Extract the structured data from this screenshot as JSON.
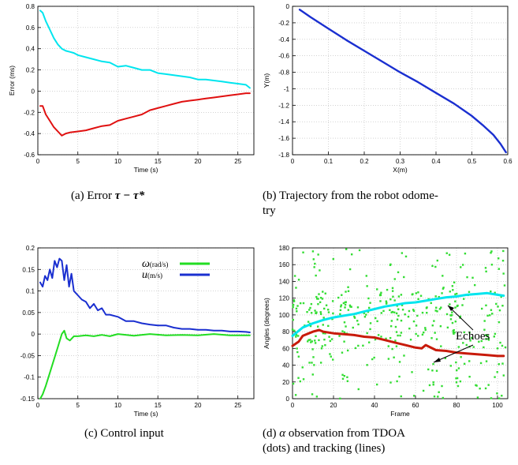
{
  "captions": {
    "a_prefix": "(a) Error ",
    "a_math": "τ − τ*",
    "b_line1": "(b) Trajectory from the robot odome-",
    "b_line2": "try",
    "c": "(c) Control input",
    "d_line1_pre": "(d) ",
    "d_line1_alpha": "α",
    "d_line1_post": " observation from TDOA",
    "d_line2": "(dots) and tracking (lines)"
  },
  "chart_data": [
    {
      "id": "a",
      "type": "line",
      "title": "",
      "xlabel": "Time (s)",
      "ylabel": "Error (ms)",
      "xlim": [
        0,
        27
      ],
      "ylim": [
        -0.6,
        0.8
      ],
      "xticks": [
        0,
        5,
        10,
        15,
        20,
        25
      ],
      "yticks": [
        -0.6,
        -0.4,
        -0.2,
        0,
        0.2,
        0.4,
        0.6,
        0.8
      ],
      "series": [
        {
          "color": "#00e5ee",
          "x": [
            0.3,
            0.6,
            1.0,
            1.5,
            2.0,
            2.5,
            3.0,
            3.5,
            4.0,
            4.5,
            5.0,
            6.0,
            7.0,
            8.0,
            9.0,
            10.0,
            11.0,
            12.0,
            13.0,
            14.0,
            15.0,
            16.0,
            17.0,
            18.0,
            19.0,
            20.0,
            21.0,
            22.0,
            23.0,
            24.0,
            25.0,
            26.0,
            26.5
          ],
          "y": [
            0.76,
            0.74,
            0.66,
            0.58,
            0.5,
            0.44,
            0.4,
            0.38,
            0.37,
            0.36,
            0.34,
            0.32,
            0.3,
            0.28,
            0.27,
            0.23,
            0.24,
            0.22,
            0.2,
            0.2,
            0.17,
            0.16,
            0.15,
            0.14,
            0.13,
            0.11,
            0.11,
            0.1,
            0.09,
            0.08,
            0.07,
            0.06,
            0.03
          ]
        },
        {
          "color": "#e01010",
          "x": [
            0.3,
            0.6,
            1.0,
            1.5,
            2.0,
            2.5,
            3.0,
            3.5,
            4.0,
            5.0,
            6.0,
            7.0,
            8.0,
            9.0,
            10.0,
            11.0,
            12.0,
            13.0,
            14.0,
            15.0,
            16.0,
            17.0,
            18.0,
            19.0,
            20.0,
            21.0,
            22.0,
            23.0,
            24.0,
            25.0,
            26.0,
            26.5
          ],
          "y": [
            -0.14,
            -0.14,
            -0.22,
            -0.28,
            -0.34,
            -0.38,
            -0.42,
            -0.4,
            -0.39,
            -0.38,
            -0.37,
            -0.35,
            -0.33,
            -0.32,
            -0.28,
            -0.26,
            -0.24,
            -0.22,
            -0.18,
            -0.16,
            -0.14,
            -0.12,
            -0.1,
            -0.09,
            -0.08,
            -0.07,
            -0.06,
            -0.05,
            -0.04,
            -0.03,
            -0.02,
            -0.02
          ]
        }
      ]
    },
    {
      "id": "b",
      "type": "line",
      "title": "",
      "xlabel": "X(m)",
      "ylabel": "Y(m)",
      "xlim": [
        0,
        0.6
      ],
      "ylim": [
        -1.8,
        0
      ],
      "xticks": [
        0,
        0.1,
        0.2,
        0.3,
        0.4,
        0.5,
        0.6
      ],
      "yticks": [
        0,
        -0.2,
        -0.4,
        -0.6,
        -0.8,
        -1,
        -1.2,
        -1.4,
        -1.6,
        -1.8
      ],
      "series": [
        {
          "color": "#1a2fd0",
          "x": [
            0.02,
            0.05,
            0.1,
            0.15,
            0.2,
            0.25,
            0.3,
            0.35,
            0.4,
            0.45,
            0.5,
            0.53,
            0.56,
            0.58,
            0.595
          ],
          "y": [
            -0.04,
            -0.13,
            -0.27,
            -0.41,
            -0.54,
            -0.67,
            -0.8,
            -0.92,
            -1.05,
            -1.18,
            -1.33,
            -1.44,
            -1.56,
            -1.67,
            -1.77
          ]
        }
      ]
    },
    {
      "id": "c",
      "type": "line",
      "title": "",
      "xlabel": "Time (s)",
      "ylabel": "",
      "xlim": [
        0,
        27
      ],
      "ylim": [
        -0.15,
        0.2
      ],
      "xticks": [
        0,
        5,
        10,
        15,
        20,
        25
      ],
      "yticks": [
        -0.15,
        -0.1,
        -0.05,
        0,
        0.05,
        0.1,
        0.15,
        0.2
      ],
      "legend_position": "top-right",
      "series": [
        {
          "name": "ω",
          "name_sub": "(rad/s)",
          "color": "#22dd22",
          "x": [
            0.3,
            0.6,
            1.0,
            1.5,
            2.0,
            2.5,
            3.0,
            3.3,
            3.6,
            4.0,
            4.5,
            5.0,
            6.0,
            7.0,
            8.0,
            9.0,
            10.0,
            12.0,
            14.0,
            16.0,
            18.0,
            20.0,
            22.0,
            24.0,
            26.5
          ],
          "y": [
            -0.15,
            -0.14,
            -0.12,
            -0.09,
            -0.06,
            -0.03,
            0.0,
            0.008,
            -0.01,
            -0.015,
            -0.005,
            -0.005,
            -0.003,
            -0.005,
            -0.002,
            -0.005,
            0.0,
            -0.004,
            0.0,
            -0.003,
            -0.002,
            -0.003,
            0.0,
            -0.003,
            -0.003
          ]
        },
        {
          "name": "u",
          "name_sub": "(m/s)",
          "color": "#1a2fd0",
          "x": [
            0.3,
            0.6,
            0.9,
            1.2,
            1.5,
            1.8,
            2.1,
            2.4,
            2.7,
            3.0,
            3.3,
            3.6,
            3.9,
            4.2,
            4.5,
            5.0,
            5.5,
            6.0,
            6.5,
            7.0,
            7.5,
            8.0,
            8.5,
            9.0,
            10.0,
            11.0,
            12.0,
            13.0,
            14.0,
            15.0,
            16.0,
            17.0,
            18.0,
            19.0,
            20.0,
            21.0,
            22.0,
            23.0,
            24.0,
            25.0,
            26.0,
            26.5
          ],
          "y": [
            0.12,
            0.11,
            0.135,
            0.125,
            0.15,
            0.13,
            0.17,
            0.155,
            0.175,
            0.17,
            0.125,
            0.16,
            0.11,
            0.14,
            0.1,
            0.09,
            0.08,
            0.075,
            0.06,
            0.07,
            0.055,
            0.06,
            0.045,
            0.045,
            0.04,
            0.03,
            0.03,
            0.025,
            0.022,
            0.02,
            0.02,
            0.015,
            0.012,
            0.012,
            0.01,
            0.01,
            0.008,
            0.008,
            0.006,
            0.006,
            0.005,
            0.004
          ]
        }
      ]
    },
    {
      "id": "d",
      "type": "scatter",
      "title": "",
      "xlabel": "Frame",
      "ylabel": "Angles (degrees)",
      "xlim": [
        0,
        105
      ],
      "ylim": [
        0,
        180
      ],
      "xticks": [
        0,
        20,
        40,
        60,
        80,
        100
      ],
      "yticks": [
        0,
        20,
        40,
        60,
        80,
        100,
        120,
        140,
        160,
        180
      ],
      "annotation": "Echoes",
      "tracks": [
        {
          "color": "#00e5ee",
          "x": [
            0,
            2,
            5,
            8,
            10,
            15,
            20,
            25,
            30,
            35,
            40,
            45,
            50,
            55,
            60,
            65,
            70,
            75,
            80,
            85,
            90,
            95,
            100,
            103
          ],
          "y": [
            75,
            79,
            85,
            88,
            90,
            94,
            97,
            99,
            101,
            104,
            107,
            110,
            112,
            114,
            115,
            117,
            119,
            121,
            122,
            124,
            125,
            126,
            124,
            123
          ]
        },
        {
          "color": "#c81a0a",
          "x": [
            0,
            3,
            5,
            8,
            10,
            13,
            15,
            20,
            25,
            30,
            35,
            40,
            45,
            50,
            55,
            60,
            63,
            65,
            70,
            75,
            80,
            85,
            90,
            95,
            100,
            103
          ],
          "y": [
            63,
            68,
            75,
            78,
            80,
            82,
            80,
            78,
            77,
            76,
            74,
            73,
            70,
            67,
            64,
            61,
            60,
            64,
            58,
            57,
            55,
            54,
            53,
            52,
            51,
            51
          ]
        }
      ],
      "points_color": "#33dd33"
    }
  ]
}
